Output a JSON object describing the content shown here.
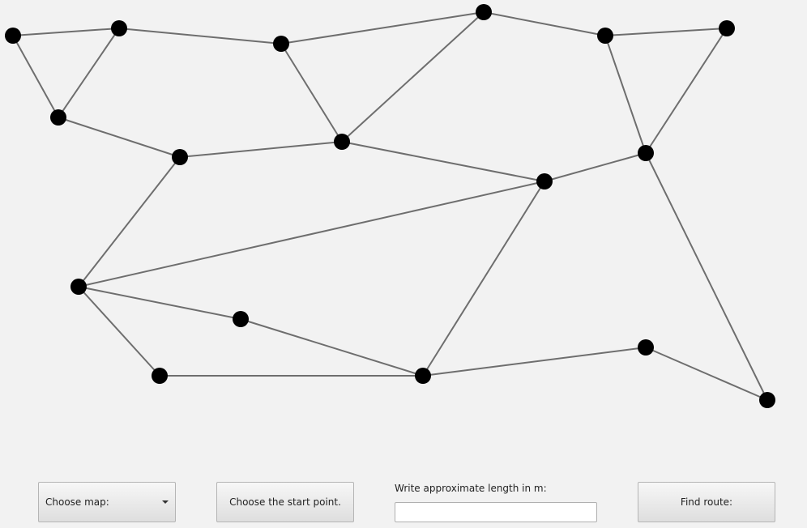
{
  "map": {
    "nodes": [
      {
        "id": 0
      },
      {
        "id": 1
      },
      {
        "id": 2
      },
      {
        "id": 3
      },
      {
        "id": 4
      },
      {
        "id": 5
      },
      {
        "id": 6
      },
      {
        "id": 7
      },
      {
        "id": 8
      },
      {
        "id": 9
      },
      {
        "id": 10
      },
      {
        "id": 11
      },
      {
        "id": 12
      },
      {
        "id": 13
      },
      {
        "id": 14
      },
      {
        "id": 15
      },
      {
        "id": 16
      },
      {
        "id": 17
      },
      {
        "id": 18
      }
    ],
    "edges": [
      [
        0,
        1
      ],
      [
        0,
        2
      ],
      [
        1,
        2
      ],
      [
        1,
        5
      ],
      [
        5,
        8
      ],
      [
        5,
        4
      ],
      [
        4,
        9
      ],
      [
        4,
        10
      ],
      [
        10,
        11
      ],
      [
        10,
        15
      ],
      [
        5,
        3
      ],
      [
        3,
        6
      ],
      [
        6,
        7
      ],
      [
        6,
        16
      ],
      [
        16,
        7
      ],
      [
        7,
        17
      ],
      [
        17,
        8
      ],
      [
        8,
        9
      ],
      [
        8,
        14
      ],
      [
        9,
        13
      ],
      [
        13,
        12
      ],
      [
        12,
        11
      ],
      [
        11,
        14
      ],
      [
        14,
        15
      ]
    ]
  },
  "controls": {
    "map_select_label": "Choose map:",
    "start_button_label": "Choose the start point.",
    "length_label": "Write approximate length in m:",
    "length_value": "",
    "find_button_label": "Find route:"
  }
}
